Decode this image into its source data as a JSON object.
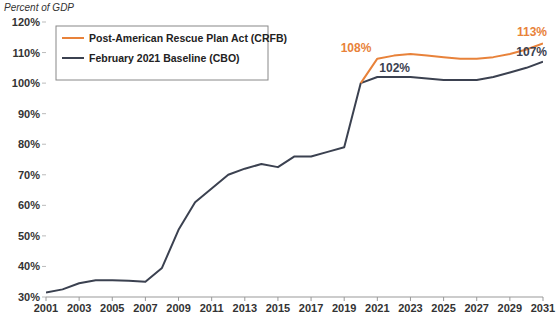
{
  "chart_data": {
    "type": "line",
    "y_label": "Percent of GDP",
    "x": [
      2001,
      2002,
      2003,
      2004,
      2005,
      2006,
      2007,
      2008,
      2009,
      2010,
      2011,
      2012,
      2013,
      2014,
      2015,
      2016,
      2017,
      2018,
      2019,
      2020,
      2021,
      2022,
      2023,
      2024,
      2025,
      2026,
      2027,
      2028,
      2029,
      2030,
      2031
    ],
    "series": [
      {
        "name": "Post-American Rescue Plan Act (CRFB)",
        "color": "#e8823a",
        "values": [
          null,
          null,
          null,
          null,
          null,
          null,
          null,
          null,
          null,
          null,
          null,
          null,
          null,
          null,
          null,
          null,
          null,
          null,
          null,
          100,
          108,
          109,
          109.5,
          109,
          108.5,
          108,
          108,
          108.5,
          109.5,
          111,
          113
        ],
        "value_labels": [
          null,
          null,
          null,
          null,
          null,
          null,
          null,
          null,
          null,
          null,
          null,
          null,
          null,
          null,
          null,
          null,
          null,
          null,
          null,
          null,
          "108%",
          null,
          null,
          null,
          null,
          null,
          null,
          null,
          null,
          null,
          "113%"
        ]
      },
      {
        "name": "February 2021 Baseline (CBO)",
        "color": "#3b4150",
        "values": [
          31.5,
          32.5,
          34.5,
          35.5,
          35.5,
          35.3,
          35,
          39.5,
          52,
          61,
          65.5,
          70,
          72,
          73.5,
          72.5,
          76,
          76,
          77.5,
          79,
          100,
          102,
          102,
          102,
          101.5,
          101,
          101,
          101,
          102,
          103.5,
          105,
          107
        ],
        "value_labels": [
          null,
          null,
          null,
          null,
          null,
          null,
          null,
          null,
          null,
          null,
          null,
          null,
          null,
          null,
          null,
          null,
          null,
          null,
          null,
          null,
          "102%",
          null,
          null,
          null,
          null,
          null,
          null,
          null,
          null,
          null,
          "107%"
        ]
      }
    ],
    "xlim": [
      2001,
      2031
    ],
    "xticks": [
      2001,
      2003,
      2005,
      2007,
      2009,
      2011,
      2013,
      2015,
      2017,
      2019,
      2021,
      2023,
      2025,
      2027,
      2029,
      2031
    ],
    "ylim": [
      30,
      120
    ],
    "yticks": [
      {
        "value": 30,
        "label": "30%"
      },
      {
        "value": 40,
        "label": "40%"
      },
      {
        "value": 50,
        "label": "50%"
      },
      {
        "value": 60,
        "label": "60%"
      },
      {
        "value": 70,
        "label": "70%"
      },
      {
        "value": 80,
        "label": "80%"
      },
      {
        "value": 90,
        "label": "90%"
      },
      {
        "value": 100,
        "label": "100%"
      },
      {
        "value": 110,
        "label": "110%"
      },
      {
        "value": 120,
        "label": "120%"
      }
    ],
    "grid": false,
    "legend": "upper left",
    "data_labels": true
  }
}
